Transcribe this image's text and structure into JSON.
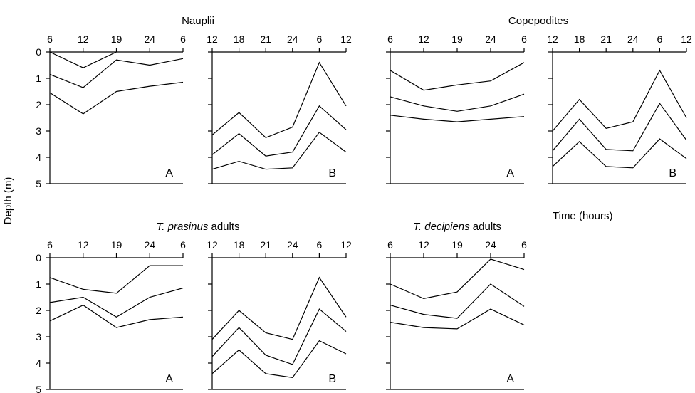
{
  "figure": {
    "ylabel": "Depth (m)",
    "time_label": "Time (hours)"
  },
  "chart_data": [
    {
      "type": "line",
      "group_title": "Nauplii",
      "panel": "A",
      "x_ticks": [
        "6",
        "12",
        "19",
        "24",
        "6"
      ],
      "xlabel": "",
      "ylabel": "Depth (m)",
      "y_ticks": [
        "0",
        "1",
        "2",
        "3",
        "4",
        "5"
      ],
      "ylim": [
        0,
        5
      ],
      "series": [
        {
          "values": [
            0.0,
            0.6,
            0.0,
            null,
            null
          ]
        },
        {
          "values": [
            0.85,
            1.35,
            0.3,
            0.5,
            0.25
          ]
        },
        {
          "values": [
            1.55,
            2.35,
            1.5,
            1.3,
            1.15
          ]
        }
      ]
    },
    {
      "type": "line",
      "panel": "B",
      "x_ticks": [
        "12",
        "18",
        "21",
        "24",
        "6",
        "12"
      ],
      "ylim": [
        0,
        5
      ],
      "series": [
        {
          "values": [
            3.15,
            2.3,
            3.25,
            2.85,
            0.4,
            2.05
          ]
        },
        {
          "values": [
            3.9,
            3.1,
            3.95,
            3.8,
            2.05,
            2.95
          ]
        },
        {
          "values": [
            4.45,
            4.15,
            4.45,
            4.4,
            3.05,
            3.8
          ]
        }
      ]
    },
    {
      "type": "line",
      "group_title": "Copepodites",
      "panel": "A",
      "x_ticks": [
        "6",
        "12",
        "19",
        "24",
        "6"
      ],
      "ylim": [
        0,
        5
      ],
      "series": [
        {
          "values": [
            0.7,
            1.45,
            1.25,
            1.1,
            0.4
          ]
        },
        {
          "values": [
            1.7,
            2.05,
            2.25,
            2.05,
            1.6
          ]
        },
        {
          "values": [
            2.4,
            2.55,
            2.65,
            2.55,
            2.45
          ]
        }
      ]
    },
    {
      "type": "line",
      "panel": "B",
      "x_ticks": [
        "12",
        "18",
        "21",
        "24",
        "6",
        "12"
      ],
      "ylim": [
        0,
        5
      ],
      "series": [
        {
          "values": [
            3.0,
            1.8,
            2.9,
            2.65,
            0.7,
            2.5
          ]
        },
        {
          "values": [
            3.75,
            2.55,
            3.7,
            3.75,
            1.95,
            3.35
          ]
        },
        {
          "values": [
            4.35,
            3.4,
            4.35,
            4.4,
            3.3,
            4.05
          ]
        }
      ]
    },
    {
      "type": "line",
      "group_title": "T. prasinus adults",
      "panel": "A",
      "x_ticks": [
        "6",
        "12",
        "19",
        "24",
        "6"
      ],
      "xlabel": "",
      "ylabel": "Depth (m)",
      "y_ticks": [
        "0",
        "1",
        "2",
        "3",
        "4",
        "5"
      ],
      "ylim": [
        0,
        5
      ],
      "series": [
        {
          "values": [
            0.75,
            1.2,
            1.35,
            0.3,
            0.3
          ]
        },
        {
          "values": [
            1.7,
            1.5,
            2.25,
            1.5,
            1.15
          ]
        },
        {
          "values": [
            2.4,
            1.8,
            2.65,
            2.35,
            2.25
          ]
        }
      ]
    },
    {
      "type": "line",
      "panel": "B",
      "x_ticks": [
        "12",
        "18",
        "21",
        "24",
        "6",
        "12"
      ],
      "ylim": [
        0,
        5
      ],
      "series": [
        {
          "values": [
            3.1,
            2.0,
            2.85,
            3.1,
            0.75,
            2.25
          ]
        },
        {
          "values": [
            3.75,
            2.65,
            3.7,
            4.05,
            1.95,
            2.8
          ]
        },
        {
          "values": [
            4.4,
            3.5,
            4.4,
            4.55,
            3.15,
            3.65
          ]
        }
      ]
    },
    {
      "type": "line",
      "group_title": "T. decipiens adults",
      "panel": "A",
      "x_ticks": [
        "6",
        "12",
        "19",
        "24",
        "6"
      ],
      "ylim": [
        0,
        5
      ],
      "series": [
        {
          "values": [
            1.0,
            1.55,
            1.3,
            0.05,
            0.45
          ]
        },
        {
          "values": [
            1.8,
            2.15,
            2.3,
            1.0,
            1.85
          ]
        },
        {
          "values": [
            2.45,
            2.65,
            2.7,
            1.95,
            2.55
          ]
        }
      ]
    }
  ]
}
